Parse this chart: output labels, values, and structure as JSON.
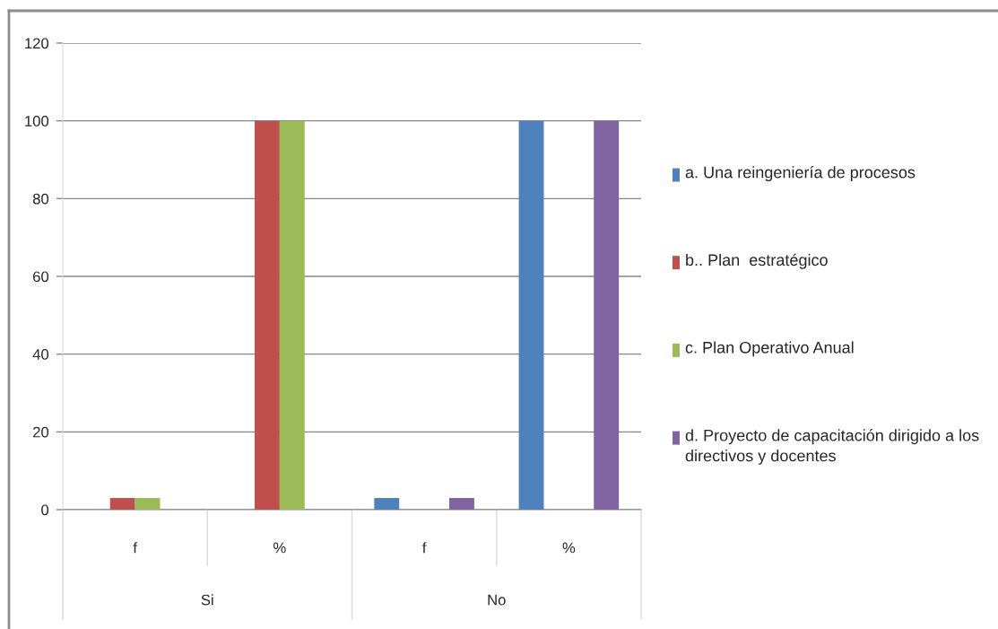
{
  "chart_data": {
    "type": "bar",
    "categories": [
      "f",
      "%",
      "f",
      "%"
    ],
    "series": [
      {
        "name": "a. Una reingeniería de procesos",
        "color": "#4f81bd",
        "values": [
          0,
          0,
          3,
          100
        ]
      },
      {
        "name": "b.. Plan  estratégico",
        "color": "#c0504d",
        "values": [
          3,
          100,
          0,
          0
        ]
      },
      {
        "name": "c. Plan Operativo Anual",
        "color": "#9bbb59",
        "values": [
          3,
          100,
          0,
          0
        ]
      },
      {
        "name": "d. Proyecto de capacitación dirigido a los directivos y docentes",
        "color": "#8064a2",
        "values": [
          0,
          0,
          3,
          100
        ]
      }
    ],
    "annotations": [
      "Si",
      "No"
    ],
    "ylim": [
      0,
      120
    ],
    "yticks": [
      0,
      20,
      40,
      60,
      80,
      100,
      120
    ],
    "grid": "y",
    "legend": "right"
  }
}
